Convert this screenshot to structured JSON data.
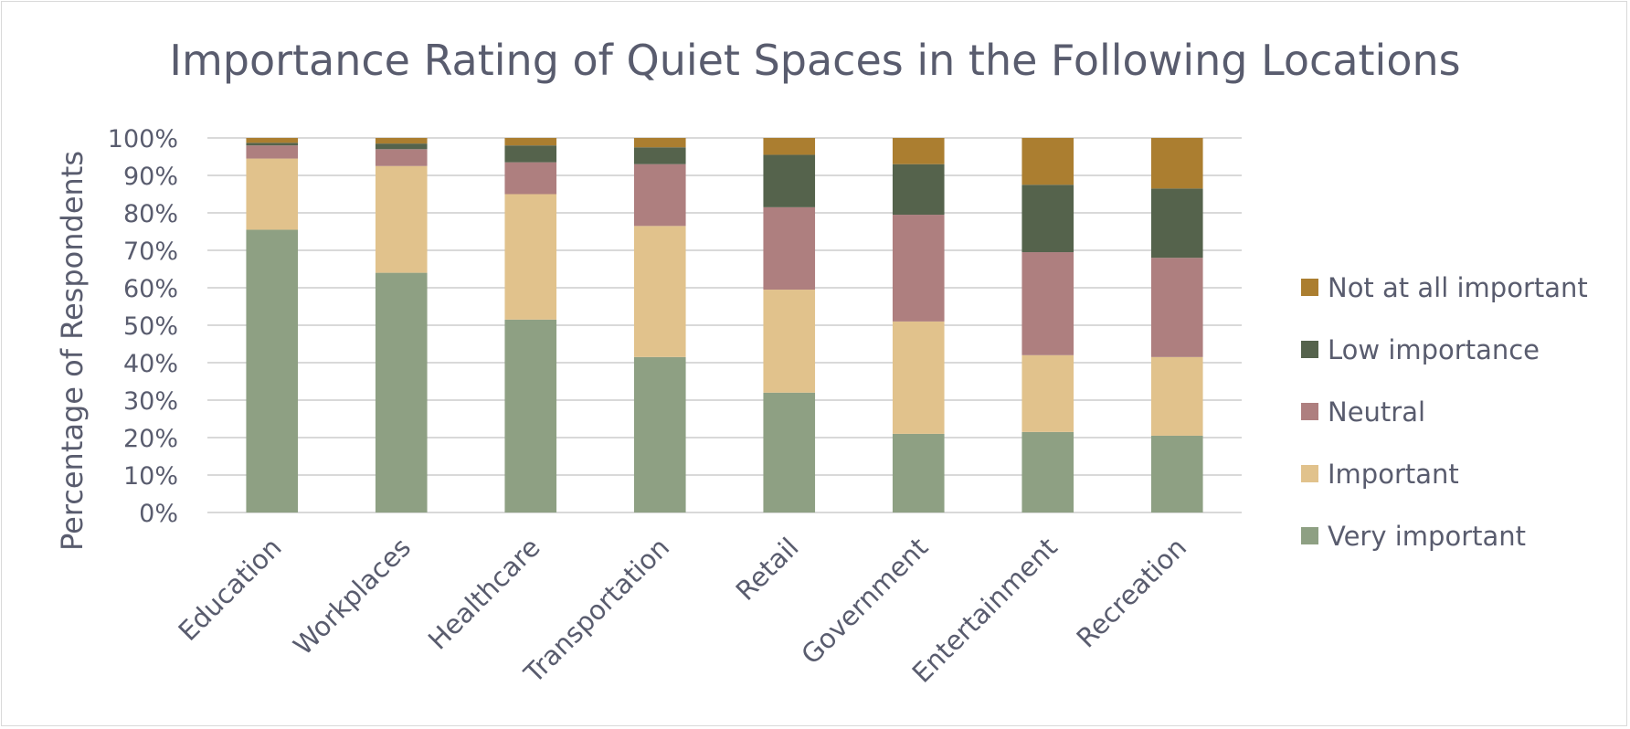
{
  "chart_data": {
    "type": "bar",
    "stacked": true,
    "percent_stacked": true,
    "title": "Importance Rating of Quiet Spaces in the Following Locations",
    "xlabel": "",
    "ylabel": "Percentage of Respondents",
    "ylim": [
      0,
      100
    ],
    "y_ticks": [
      "0%",
      "10%",
      "20%",
      "30%",
      "40%",
      "50%",
      "60%",
      "70%",
      "80%",
      "90%",
      "100%"
    ],
    "grid": true,
    "legend_position": "right",
    "categories": [
      "Education",
      "Workplaces",
      "Healthcare",
      "Transportation",
      "Retail",
      "Government",
      "Entertainment",
      "Recreation"
    ],
    "series": [
      {
        "name": "Very important",
        "color": "#8ea083",
        "values": [
          75.5,
          64.0,
          51.5,
          41.5,
          32.0,
          21.0,
          21.5,
          20.5
        ]
      },
      {
        "name": "Important",
        "color": "#e1c28c",
        "values": [
          19.0,
          28.5,
          33.5,
          35.0,
          27.5,
          30.0,
          20.5,
          21.0
        ]
      },
      {
        "name": "Neutral",
        "color": "#ae7f7f",
        "values": [
          3.5,
          4.5,
          8.5,
          16.5,
          22.0,
          28.5,
          27.5,
          26.5
        ]
      },
      {
        "name": "Low importance",
        "color": "#55634c",
        "values": [
          0.7,
          1.5,
          4.5,
          4.5,
          14.0,
          13.5,
          18.0,
          18.5
        ]
      },
      {
        "name": "Not at all important",
        "color": "#ab7e30",
        "values": [
          1.3,
          1.5,
          2.0,
          2.5,
          4.5,
          7.0,
          12.5,
          13.5
        ]
      }
    ]
  }
}
